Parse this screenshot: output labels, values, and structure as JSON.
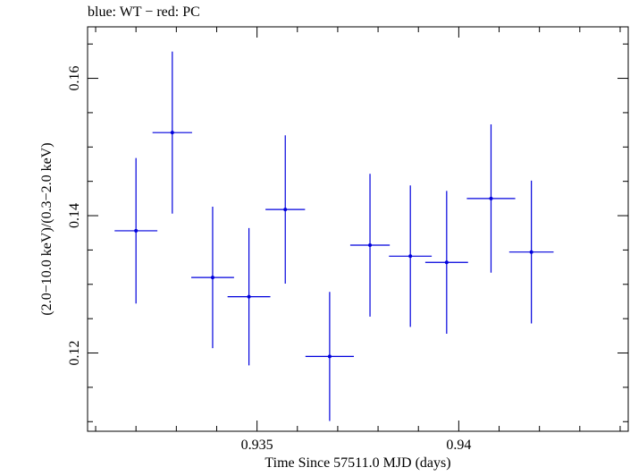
{
  "chart_data": {
    "type": "scatter",
    "title": "blue: WT − red: PC",
    "xlabel": "Time Since 57511.0 MJD (days)",
    "ylabel": "(2.0−10.0 keV)/(0.3−2.0 keV)",
    "xlim": [
      0.9308,
      0.9442
    ],
    "ylim": [
      0.1086,
      0.1675
    ],
    "x_ticks": [
      0.935,
      0.94
    ],
    "x_tick_labels": [
      "0.935",
      "0.94"
    ],
    "y_ticks": [
      0.12,
      0.14,
      0.16
    ],
    "y_tick_labels": [
      "0.12",
      "0.14",
      "0.16"
    ],
    "grid": false,
    "colors": {
      "WT": "#0000dd",
      "PC": "#dd0000"
    },
    "series": [
      {
        "name": "WT",
        "points": [
          {
            "x": 0.932,
            "xerr": 0.00053,
            "y": 0.1378,
            "yerr": 0.0106
          },
          {
            "x": 0.9329,
            "xerr": 0.00049,
            "y": 0.1521,
            "yerr": 0.0118
          },
          {
            "x": 0.9339,
            "xerr": 0.00053,
            "y": 0.131,
            "yerr": 0.0103
          },
          {
            "x": 0.9348,
            "xerr": 0.00053,
            "y": 0.1282,
            "yerr": 0.01
          },
          {
            "x": 0.9357,
            "xerr": 0.00049,
            "y": 0.1409,
            "yerr": 0.0108
          },
          {
            "x": 0.9368,
            "xerr": 0.0006,
            "y": 0.1195,
            "yerr": 0.0094
          },
          {
            "x": 0.9378,
            "xerr": 0.00049,
            "y": 0.1357,
            "yerr": 0.0104
          },
          {
            "x": 0.9388,
            "xerr": 0.00053,
            "y": 0.1341,
            "yerr": 0.0103
          },
          {
            "x": 0.9397,
            "xerr": 0.00053,
            "y": 0.1332,
            "yerr": 0.0104
          },
          {
            "x": 0.9408,
            "xerr": 0.0006,
            "y": 0.1425,
            "yerr": 0.0108
          },
          {
            "x": 0.9418,
            "xerr": 0.00055,
            "y": 0.1347,
            "yerr": 0.0104
          }
        ]
      }
    ]
  }
}
